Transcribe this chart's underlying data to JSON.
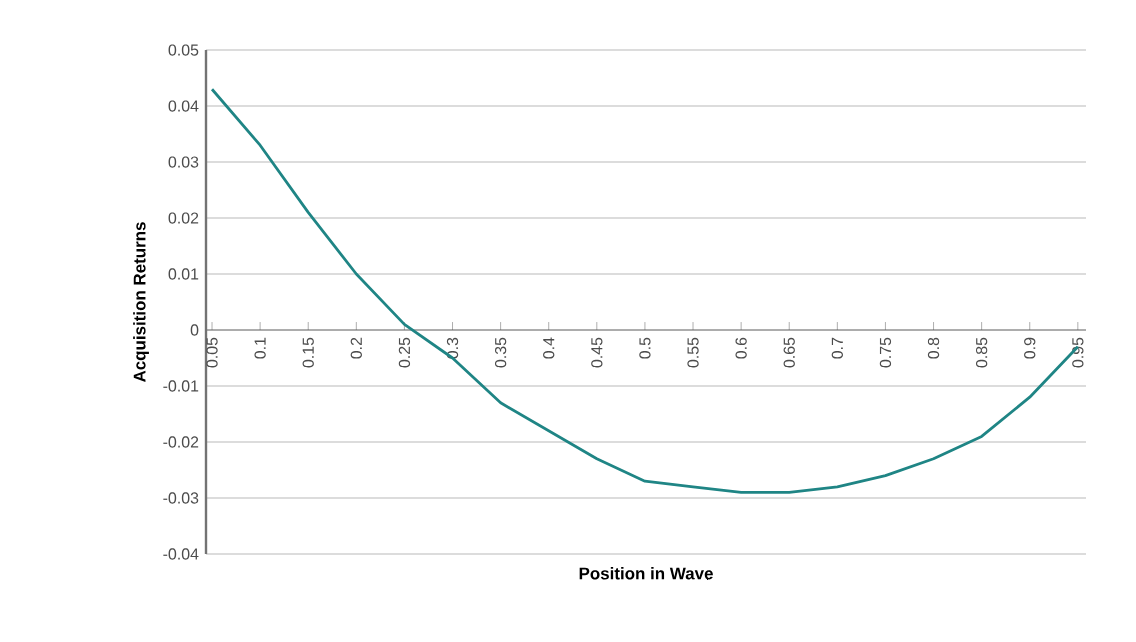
{
  "chart_data": {
    "type": "line",
    "xlabel": "Position in Wave",
    "ylabel": "Acquisition Returns",
    "categories": [
      "0.05",
      "0.1",
      "0.15",
      "0.2",
      "0.25",
      "0.3",
      "0.35",
      "0.4",
      "0.45",
      "0.5",
      "0.55",
      "0.6",
      "0.65",
      "0.7",
      "0.75",
      "0.8",
      "0.85",
      "0.9",
      "0.95"
    ],
    "values": [
      0.043,
      0.033,
      0.021,
      0.01,
      0.001,
      -0.005,
      -0.013,
      -0.018,
      -0.023,
      -0.027,
      -0.028,
      -0.029,
      -0.029,
      -0.028,
      -0.026,
      -0.023,
      -0.019,
      -0.012,
      -0.003
    ],
    "color": "#1f8585",
    "ylim": [
      -0.04,
      0.05
    ],
    "yticks": [
      -0.04,
      -0.03,
      -0.02,
      -0.01,
      0,
      0.01,
      0.02,
      0.03,
      0.04,
      0.05
    ],
    "grid": "y"
  }
}
